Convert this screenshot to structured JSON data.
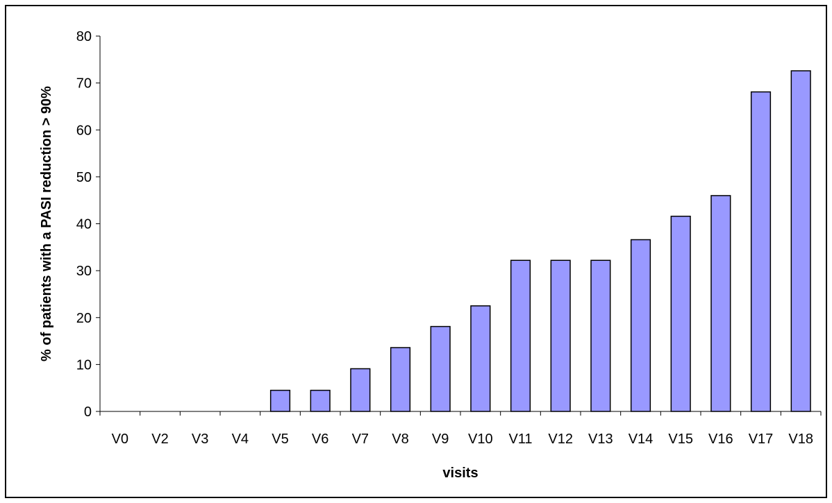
{
  "chart_data": {
    "type": "bar",
    "categories": [
      "V0",
      "V2",
      "V3",
      "V4",
      "V5",
      "V6",
      "V7",
      "V8",
      "V9",
      "V10",
      "V11",
      "V12",
      "V13",
      "V14",
      "V15",
      "V16",
      "V17",
      "V18"
    ],
    "values": [
      0,
      0,
      0,
      0,
      4.5,
      4.5,
      9.1,
      13.6,
      18.1,
      22.5,
      32.2,
      32.2,
      32.2,
      36.6,
      41.6,
      46.0,
      68.1,
      72.6
    ],
    "xlabel": "visits",
    "ylabel": "% of patients with a PASI reduction > 90%",
    "ylim": [
      0,
      80
    ],
    "yticks": [
      0,
      10,
      20,
      30,
      40,
      50,
      60,
      70,
      80
    ],
    "grid": false,
    "legend": "none",
    "bar_color": "#9999ff"
  }
}
